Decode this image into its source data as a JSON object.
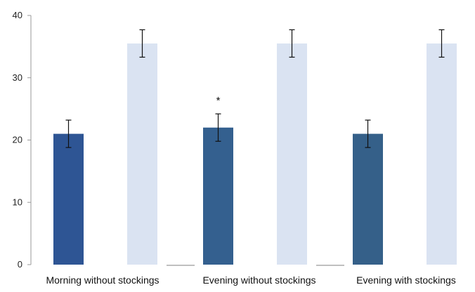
{
  "chart_data": {
    "type": "bar",
    "title": "",
    "xlabel": "",
    "ylabel": "",
    "categories": [
      "Morning without stockings",
      "Evening without stockings",
      "Evening with stockings"
    ],
    "series": [
      {
        "values": [
          21,
          22,
          21
        ],
        "errors": [
          2.2,
          2.2,
          2.2
        ],
        "colors": [
          "#2e5594",
          "#34608f",
          "#356089"
        ]
      },
      {
        "values": [
          35.5,
          35.5,
          35.5
        ],
        "errors": [
          2.2,
          2.2,
          2.2
        ],
        "colors": [
          "#dae3f2",
          "#dae3f2",
          "#dae3f2"
        ]
      }
    ],
    "annotations": [
      {
        "category": 1,
        "series": 0,
        "text": "*"
      }
    ],
    "yticks": [
      0,
      10,
      20,
      30,
      40
    ],
    "ylim": [
      0,
      40
    ],
    "grid": false,
    "legend": "none"
  }
}
